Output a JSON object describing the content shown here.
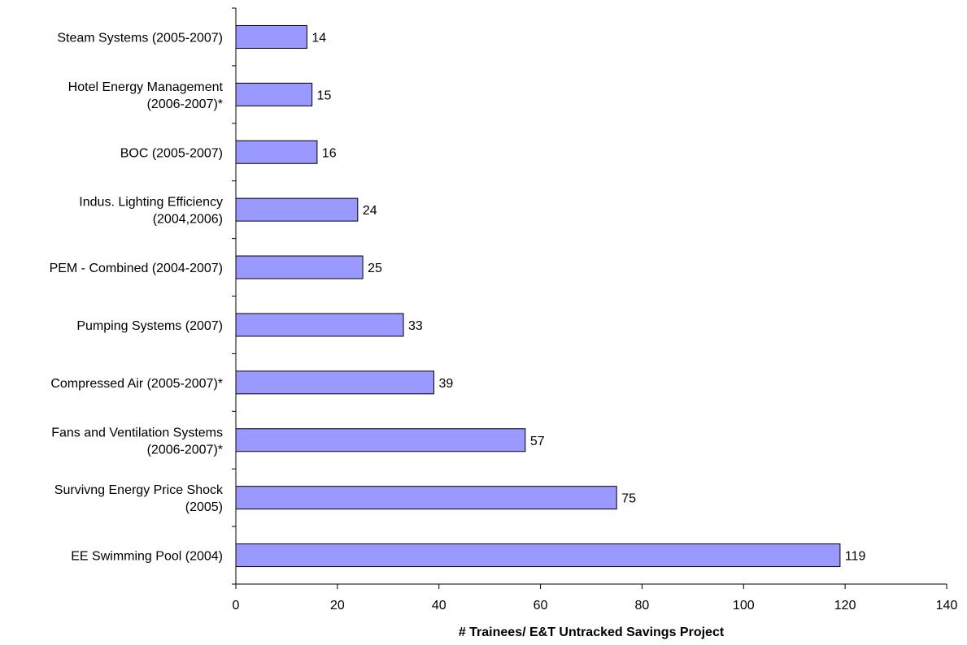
{
  "chart_data": {
    "type": "bar",
    "orientation": "horizontal",
    "categories": [
      "Steam Systems (2005-2007)",
      "Hotel Energy Management (2006-2007)*",
      "BOC (2005-2007)",
      "Indus. Lighting Efficiency (2004,2006)",
      "PEM - Combined (2004-2007)",
      "Pumping Systems (2007)",
      "Compressed Air (2005-2007)*",
      "Fans and Ventilation Systems (2006-2007)*",
      "Survivng Energy Price Shock (2005)",
      "EE Swimming Pool (2004)"
    ],
    "category_lines": [
      [
        "Steam Systems (2005-2007)"
      ],
      [
        "Hotel Energy Management",
        "(2006-2007)*"
      ],
      [
        "BOC (2005-2007)"
      ],
      [
        "Indus. Lighting Efficiency",
        "(2004,2006)"
      ],
      [
        "PEM - Combined (2004-2007)"
      ],
      [
        "Pumping Systems (2007)"
      ],
      [
        "Compressed Air (2005-2007)*"
      ],
      [
        "Fans and Ventilation Systems",
        "(2006-2007)*"
      ],
      [
        "Survivng Energy Price Shock",
        "(2005)"
      ],
      [
        "EE Swimming Pool (2004)"
      ]
    ],
    "values": [
      14,
      15,
      16,
      24,
      25,
      33,
      39,
      57,
      75,
      119
    ],
    "data_labels": [
      "14",
      "15",
      "16",
      "24",
      "25",
      "33",
      "39",
      "57",
      "75",
      "119"
    ],
    "title": "",
    "xlabel": "# Trainees/ E&T Untracked Savings Project",
    "ylabel": "",
    "xlim": [
      0,
      140
    ],
    "x_ticks": [
      "0",
      "20",
      "40",
      "60",
      "80",
      "100",
      "120",
      "140"
    ],
    "x_tick_values": [
      0,
      20,
      40,
      60,
      80,
      100,
      120,
      140
    ],
    "grid": false,
    "legend": "none",
    "colors": {
      "bar_fill": "#9999ff",
      "bar_stroke": "#000000",
      "axis": "#000000"
    }
  }
}
